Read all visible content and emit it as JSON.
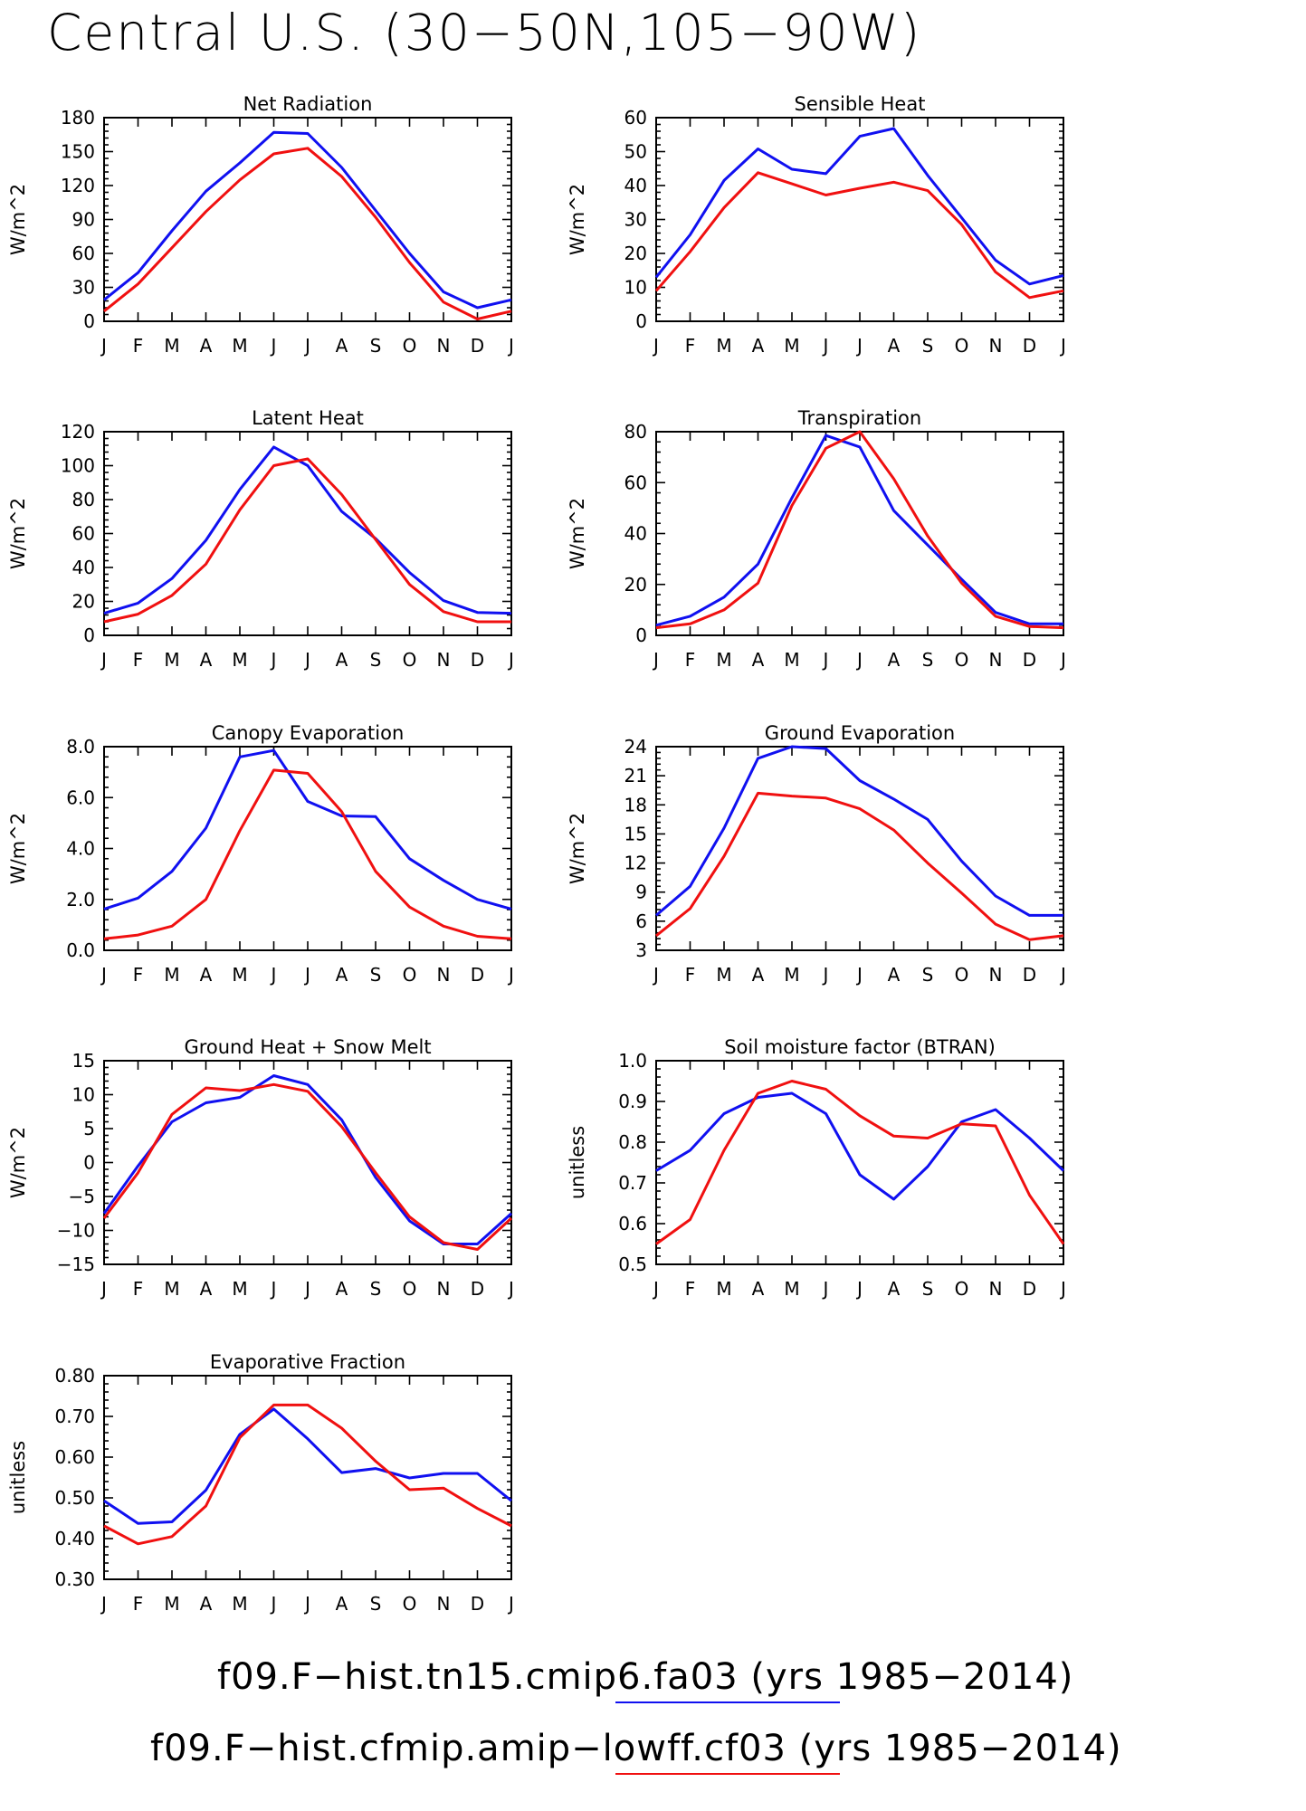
{
  "page": {
    "title": "Central U.S. (30−50N,105−90W)"
  },
  "colors": {
    "blue": "#1010f0",
    "red": "#f01010"
  },
  "legend": [
    {
      "label": "f09.F−hist.tn15.cmip6.fa03 (yrs 1985−2014)",
      "color": "#1010f0"
    },
    {
      "label": "f09.F−hist.cfmip.amip−lowff.cf03 (yrs 1985−2014)",
      "color": "#f01010"
    }
  ],
  "chart_data": [
    {
      "type": "line",
      "title": "Net Radiation",
      "ylabel": "W/m^2",
      "categories": [
        "J",
        "F",
        "M",
        "A",
        "M",
        "J",
        "J",
        "A",
        "S",
        "O",
        "N",
        "D",
        "J"
      ],
      "ylim": [
        0,
        180
      ],
      "yticks": [
        "0",
        "30",
        "60",
        "90",
        "120",
        "150",
        "180"
      ],
      "series": [
        {
          "color": "#1010f0",
          "values": [
            19,
            43,
            80,
            115,
            140,
            167,
            166,
            136,
            98,
            60,
            26,
            12,
            19
          ]
        },
        {
          "color": "#f01010",
          "values": [
            9,
            33,
            65,
            97,
            125,
            148,
            153,
            128,
            92,
            52,
            17,
            2,
            9
          ]
        }
      ]
    },
    {
      "type": "line",
      "title": "Sensible Heat",
      "ylabel": "W/m^2",
      "categories": [
        "J",
        "F",
        "M",
        "A",
        "M",
        "J",
        "J",
        "A",
        "S",
        "O",
        "N",
        "D",
        "J"
      ],
      "ylim": [
        0,
        60
      ],
      "yticks": [
        "0",
        "10",
        "20",
        "30",
        "40",
        "50",
        "60"
      ],
      "series": [
        {
          "color": "#1010f0",
          "values": [
            13,
            25.5,
            41.5,
            50.8,
            44.8,
            43.5,
            54.5,
            56.8,
            43,
            30.5,
            18,
            11,
            13.5
          ]
        },
        {
          "color": "#f01010",
          "values": [
            9,
            20.5,
            33.5,
            43.8,
            40.5,
            37.2,
            39.2,
            41,
            38.5,
            28.5,
            14.5,
            7,
            9
          ]
        }
      ]
    },
    {
      "type": "line",
      "title": "Latent Heat",
      "ylabel": "W/m^2",
      "categories": [
        "J",
        "F",
        "M",
        "A",
        "M",
        "J",
        "J",
        "A",
        "S",
        "O",
        "N",
        "D",
        "J"
      ],
      "ylim": [
        0,
        120
      ],
      "yticks": [
        "0",
        "20",
        "40",
        "60",
        "80",
        "100",
        "120"
      ],
      "series": [
        {
          "color": "#1010f0",
          "values": [
            13,
            19,
            33.5,
            56,
            86,
            111,
            100,
            73,
            57,
            37,
            20.5,
            13.5,
            13
          ]
        },
        {
          "color": "#f01010",
          "values": [
            8,
            12.5,
            23.5,
            42,
            74,
            100,
            104,
            83,
            56.5,
            30,
            14,
            8,
            8
          ]
        }
      ]
    },
    {
      "type": "line",
      "title": "Transpiration",
      "ylabel": "W/m^2",
      "categories": [
        "J",
        "F",
        "M",
        "A",
        "M",
        "J",
        "J",
        "A",
        "S",
        "O",
        "N",
        "D",
        "J"
      ],
      "ylim": [
        0,
        80
      ],
      "yticks": [
        "0",
        "20",
        "40",
        "60",
        "80"
      ],
      "series": [
        {
          "color": "#1010f0",
          "values": [
            4,
            7.5,
            15,
            28,
            54,
            78.5,
            74,
            49,
            35.5,
            22,
            9,
            4.5,
            4.5
          ]
        },
        {
          "color": "#f01010",
          "values": [
            3,
            4.5,
            10,
            20.5,
            51,
            73.5,
            80,
            61.5,
            39,
            20.5,
            7.5,
            3.5,
            3
          ]
        }
      ]
    },
    {
      "type": "line",
      "title": "Canopy Evaporation",
      "ylabel": "W/m^2",
      "categories": [
        "J",
        "F",
        "M",
        "A",
        "M",
        "J",
        "J",
        "A",
        "S",
        "O",
        "N",
        "D",
        "J"
      ],
      "ylim": [
        0,
        8
      ],
      "yticks": [
        "0.0",
        "2.0",
        "4.0",
        "6.0",
        "8.0"
      ],
      "series": [
        {
          "color": "#1010f0",
          "values": [
            1.62,
            2.05,
            3.1,
            4.8,
            7.6,
            7.85,
            5.85,
            5.28,
            5.25,
            3.6,
            2.75,
            2.0,
            1.62
          ]
        },
        {
          "color": "#f01010",
          "values": [
            0.45,
            0.6,
            0.95,
            2.0,
            4.7,
            7.08,
            6.95,
            5.45,
            3.1,
            1.7,
            0.95,
            0.55,
            0.45
          ]
        }
      ]
    },
    {
      "type": "line",
      "title": "Ground Evaporation",
      "ylabel": "W/m^2",
      "categories": [
        "J",
        "F",
        "M",
        "A",
        "M",
        "J",
        "J",
        "A",
        "S",
        "O",
        "N",
        "D",
        "J"
      ],
      "ylim": [
        3,
        24
      ],
      "yticks": [
        "3",
        "6",
        "9",
        "12",
        "15",
        "18",
        "21",
        "24"
      ],
      "series": [
        {
          "color": "#1010f0",
          "values": [
            6.6,
            9.6,
            15.6,
            22.8,
            24,
            23.8,
            20.5,
            18.6,
            16.5,
            12.2,
            8.6,
            6.6,
            6.6
          ]
        },
        {
          "color": "#f01010",
          "values": [
            4.5,
            7.3,
            12.7,
            19.2,
            18.9,
            18.7,
            17.6,
            15.4,
            12.0,
            8.9,
            5.7,
            4.1,
            4.5
          ]
        }
      ]
    },
    {
      "type": "line",
      "title": "Ground Heat + Snow Melt",
      "ylabel": "W/m^2",
      "categories": [
        "J",
        "F",
        "M",
        "A",
        "M",
        "J",
        "J",
        "A",
        "S",
        "O",
        "N",
        "D",
        "J"
      ],
      "ylim": [
        -15,
        15
      ],
      "yticks": [
        "−15",
        "−10",
        "−5",
        "0",
        "5",
        "10",
        "15"
      ],
      "series": [
        {
          "color": "#1010f0",
          "values": [
            -7.5,
            -0.5,
            6,
            8.8,
            9.6,
            12.8,
            11.5,
            6.3,
            -2.2,
            -8.6,
            -12,
            -12,
            -7.5
          ]
        },
        {
          "color": "#f01010",
          "values": [
            -8.2,
            -1.5,
            7.1,
            11,
            10.6,
            11.5,
            10.5,
            5.3,
            -1.5,
            -8,
            -11.8,
            -12.8,
            -8.2
          ]
        }
      ]
    },
    {
      "type": "line",
      "title": "Soil moisture factor (BTRAN)",
      "ylabel": "unitless",
      "categories": [
        "J",
        "F",
        "M",
        "A",
        "M",
        "J",
        "J",
        "A",
        "S",
        "O",
        "N",
        "D",
        "J"
      ],
      "ylim": [
        0.5,
        1.0
      ],
      "yticks": [
        "0.5",
        "0.6",
        "0.7",
        "0.8",
        "0.9",
        "1.0"
      ],
      "series": [
        {
          "color": "#1010f0",
          "values": [
            0.73,
            0.78,
            0.87,
            0.91,
            0.92,
            0.87,
            0.72,
            0.66,
            0.74,
            0.85,
            0.88,
            0.81,
            0.73
          ]
        },
        {
          "color": "#f01010",
          "values": [
            0.55,
            0.61,
            0.78,
            0.92,
            0.95,
            0.93,
            0.865,
            0.815,
            0.81,
            0.845,
            0.84,
            0.67,
            0.55
          ]
        }
      ]
    },
    {
      "type": "line",
      "title": "Evaporative Fraction",
      "ylabel": "unitless",
      "categories": [
        "J",
        "F",
        "M",
        "A",
        "M",
        "J",
        "J",
        "A",
        "S",
        "O",
        "N",
        "D",
        "J"
      ],
      "ylim": [
        0.3,
        0.8
      ],
      "yticks": [
        "0.30",
        "0.40",
        "0.50",
        "0.60",
        "0.70",
        "0.80"
      ],
      "series": [
        {
          "color": "#1010f0",
          "values": [
            0.493,
            0.437,
            0.441,
            0.519,
            0.656,
            0.718,
            0.645,
            0.562,
            0.572,
            0.549,
            0.56,
            0.56,
            0.493
          ]
        },
        {
          "color": "#f01010",
          "values": [
            0.431,
            0.387,
            0.405,
            0.48,
            0.648,
            0.728,
            0.728,
            0.671,
            0.59,
            0.52,
            0.524,
            0.474,
            0.431
          ]
        }
      ]
    }
  ]
}
